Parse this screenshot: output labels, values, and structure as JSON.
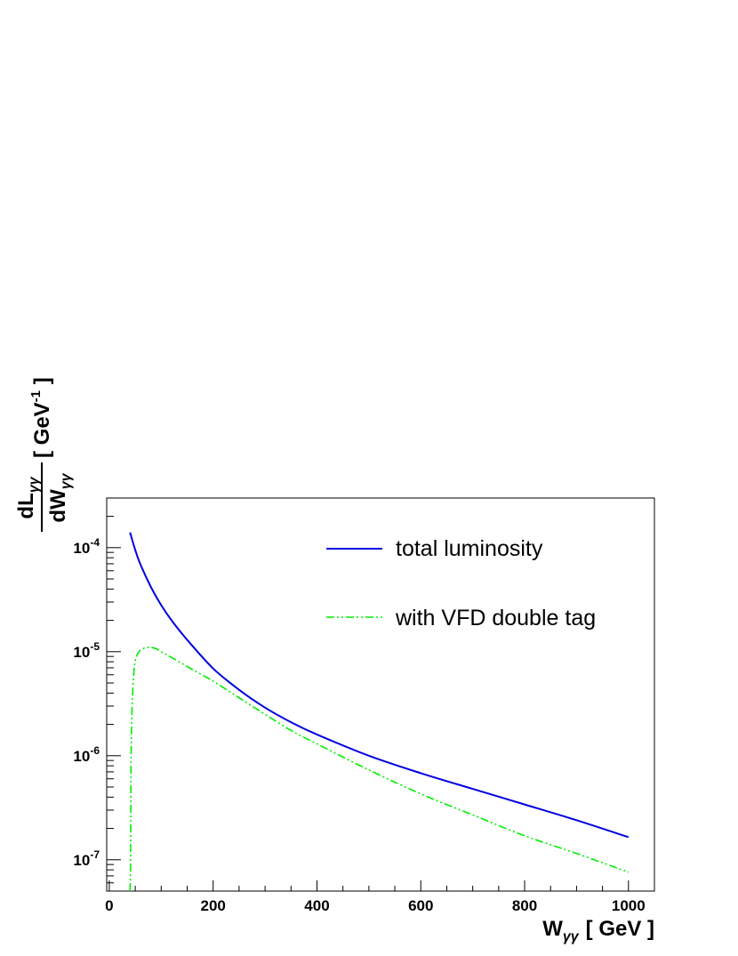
{
  "chart_data": {
    "type": "line",
    "title": "",
    "xlabel": {
      "main": "W",
      "sub": "γγ",
      "unit": "[ GeV ]"
    },
    "ylabel": {
      "numerator": {
        "main": "dL",
        "sub": "γγ"
      },
      "denominator": {
        "main": "dW",
        "sub": "γγ"
      },
      "unit_prefix": "[ GeV",
      "unit_exp": "-1",
      "unit_suffix": " ]"
    },
    "xlim": [
      -5,
      1050
    ],
    "ylim": [
      5e-08,
      0.0003
    ],
    "yscale": "log",
    "grid": false,
    "legend_position": "top-right",
    "x_ticks": [
      0,
      200,
      400,
      600,
      800,
      1000
    ],
    "y_ticks": [
      {
        "value": 1e-07,
        "base": "10",
        "exp": "-7"
      },
      {
        "value": 1e-06,
        "base": "10",
        "exp": "-6"
      },
      {
        "value": 1e-05,
        "base": "10",
        "exp": "-5"
      },
      {
        "value": 0.0001,
        "base": "10",
        "exp": "-4"
      }
    ],
    "series": [
      {
        "name": "total luminosity",
        "color": "#0000e0",
        "style": "solid",
        "x": [
          40,
          50,
          60,
          80,
          100,
          120,
          150,
          200,
          250,
          300,
          350,
          400,
          500,
          600,
          700,
          800,
          900,
          1000
        ],
        "y": [
          0.00014,
          9.5e-05,
          6.9e-05,
          4.2e-05,
          2.8e-05,
          2e-05,
          1.3e-05,
          6.9e-06,
          4.3e-06,
          2.9e-06,
          2.1e-06,
          1.6e-06,
          1e-06,
          6.8e-07,
          4.8e-07,
          3.4e-07,
          2.4e-07,
          1.65e-07
        ]
      },
      {
        "name": "with VFD double tag",
        "color": "#00ee00",
        "style": "dash-dot-dot",
        "x": [
          40,
          41,
          42,
          44,
          47,
          50,
          55,
          60,
          65,
          70,
          75,
          80,
          90,
          100,
          120,
          150,
          200,
          250,
          300,
          350,
          400,
          500,
          600,
          700,
          800,
          900,
          1000
        ],
        "y": [
          5e-08,
          1e-07,
          1e-06,
          3e-06,
          6e-06,
          8.2e-06,
          9.6e-06,
          1.04e-05,
          1.07e-05,
          1.09e-05,
          1.1e-05,
          1.1e-05,
          1.07e-05,
          1e-05,
          8.8e-06,
          7.2e-06,
          5.2e-06,
          3.6e-06,
          2.5e-06,
          1.75e-06,
          1.3e-06,
          7.3e-07,
          4.3e-07,
          2.7e-07,
          1.7e-07,
          1.15e-07,
          7.6e-08
        ]
      }
    ]
  }
}
